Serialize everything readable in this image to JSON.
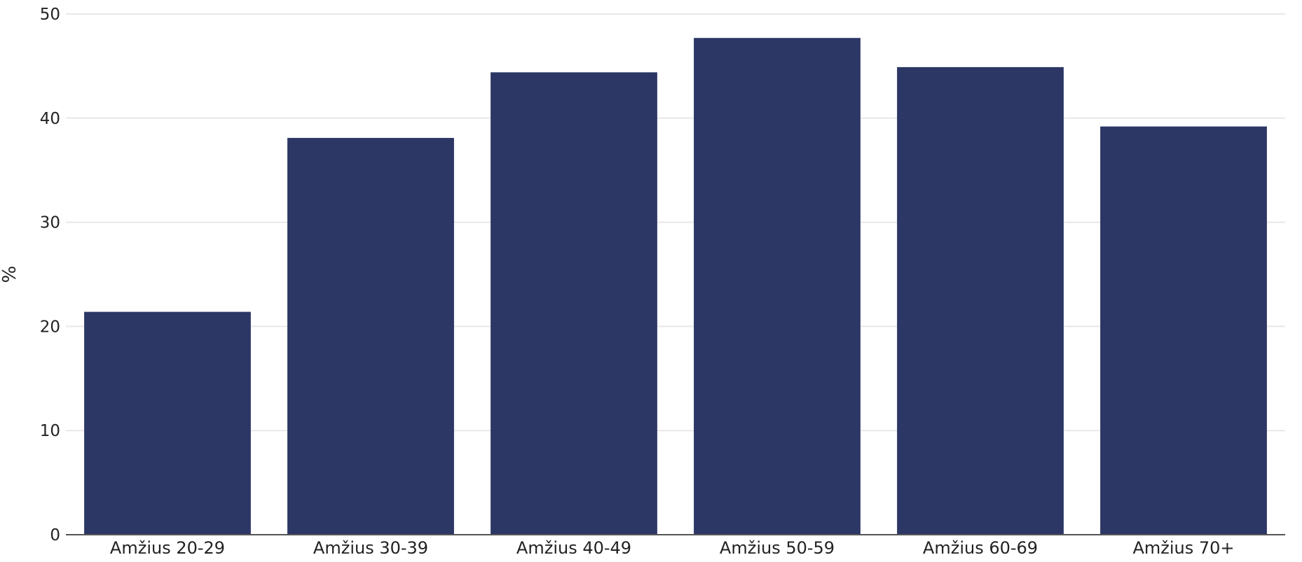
{
  "chart_data": {
    "type": "bar",
    "categories": [
      "Amžius 20-29",
      "Amžius 30-39",
      "Amžius 40-49",
      "Amžius 50-59",
      "Amžius 60-69",
      "Amžius 70+"
    ],
    "values": [
      21.4,
      38.1,
      44.4,
      47.7,
      44.9,
      39.2
    ],
    "title": "",
    "xlabel": "",
    "ylabel": "%",
    "ylim": [
      0,
      50
    ],
    "yticks": [
      "0",
      "10",
      "20",
      "30",
      "40",
      "50"
    ],
    "grid": true,
    "legend": "none",
    "colors": {
      "bar": "#2c3765",
      "grid": "#e8e8e8",
      "axis": "#555555"
    }
  }
}
